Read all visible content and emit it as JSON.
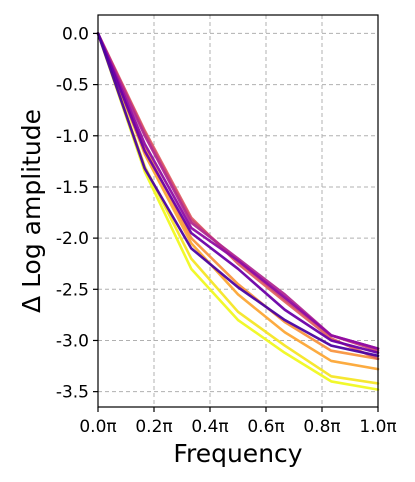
{
  "chart_data": {
    "type": "line",
    "xlabel": "Frequency",
    "ylabel": "Δ Log amplitude",
    "xlim": [
      0,
      1
    ],
    "ylim": [
      -3.65,
      0.18
    ],
    "xticks": [
      0,
      0.2,
      0.4,
      0.6,
      0.8,
      1.0
    ],
    "xtick_labels": [
      "0.0π",
      "0.2π",
      "0.4π",
      "0.6π",
      "0.8π",
      "1.0π"
    ],
    "yticks": [
      0,
      -0.5,
      -1,
      -1.5,
      -2,
      -2.5,
      -3,
      -3.5
    ],
    "ytick_labels": [
      "0.0",
      "-0.5",
      "-1.0",
      "-1.5",
      "-2.0",
      "-2.5",
      "-3.0",
      "-3.5"
    ],
    "grid": true,
    "x": [
      0,
      0.167,
      0.333,
      0.5,
      0.667,
      0.833,
      1.0
    ],
    "series": [
      {
        "color": "#f0f921",
        "values": [
          0,
          -1.35,
          -2.3,
          -2.8,
          -3.12,
          -3.4,
          -3.48
        ]
      },
      {
        "color": "#f6e626",
        "values": [
          0,
          -1.3,
          -2.2,
          -2.72,
          -3.05,
          -3.35,
          -3.42
        ]
      },
      {
        "color": "#fca636",
        "values": [
          0,
          -1.18,
          -2.05,
          -2.55,
          -2.92,
          -3.2,
          -3.28
        ]
      },
      {
        "color": "#f89540",
        "values": [
          0,
          -1.12,
          -2.0,
          -2.45,
          -2.82,
          -3.1,
          -3.18
        ]
      },
      {
        "color": "#e16462",
        "values": [
          0,
          -0.95,
          -1.8,
          -2.25,
          -2.62,
          -2.98,
          -3.18
        ]
      },
      {
        "color": "#cc4778",
        "values": [
          0,
          -0.97,
          -1.82,
          -2.22,
          -2.6,
          -2.95,
          -3.1
        ]
      },
      {
        "color": "#b12a90",
        "values": [
          0,
          -1.0,
          -1.85,
          -2.2,
          -2.55,
          -2.95,
          -3.08
        ]
      },
      {
        "color": "#8f0da4",
        "values": [
          0,
          -1.08,
          -1.9,
          -2.22,
          -2.58,
          -2.95,
          -3.08
        ]
      },
      {
        "color": "#6a00a8",
        "values": [
          0,
          -1.15,
          -1.95,
          -2.3,
          -2.7,
          -3.0,
          -3.12
        ]
      },
      {
        "color": "#4b03a1",
        "values": [
          0,
          -1.32,
          -2.1,
          -2.48,
          -2.8,
          -3.05,
          -3.15
        ]
      }
    ]
  }
}
